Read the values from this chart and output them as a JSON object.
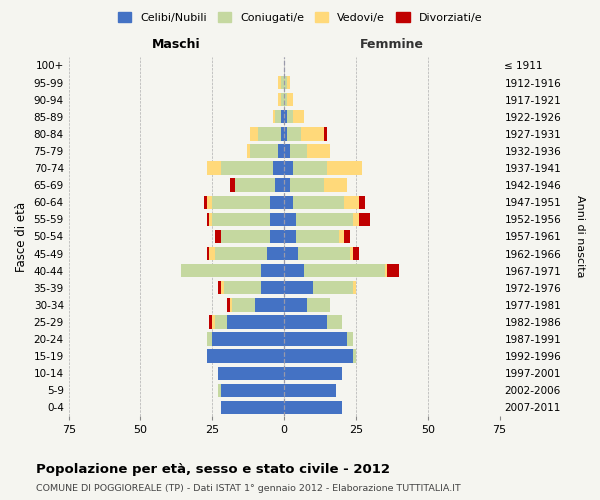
{
  "age_groups": [
    "0-4",
    "5-9",
    "10-14",
    "15-19",
    "20-24",
    "25-29",
    "30-34",
    "35-39",
    "40-44",
    "45-49",
    "50-54",
    "55-59",
    "60-64",
    "65-69",
    "70-74",
    "75-79",
    "80-84",
    "85-89",
    "90-94",
    "95-99",
    "100+"
  ],
  "birth_years": [
    "2007-2011",
    "2002-2006",
    "1997-2001",
    "1992-1996",
    "1987-1991",
    "1982-1986",
    "1977-1981",
    "1972-1976",
    "1967-1971",
    "1962-1966",
    "1957-1961",
    "1952-1956",
    "1947-1951",
    "1942-1946",
    "1937-1941",
    "1932-1936",
    "1927-1931",
    "1922-1926",
    "1917-1921",
    "1912-1916",
    "≤ 1911"
  ],
  "maschi_celibi": [
    22,
    22,
    23,
    27,
    25,
    20,
    10,
    8,
    8,
    6,
    5,
    5,
    5,
    3,
    4,
    2,
    1,
    1,
    0,
    0,
    0
  ],
  "maschi_coniugati": [
    0,
    1,
    0,
    0,
    2,
    4,
    8,
    13,
    28,
    18,
    17,
    20,
    20,
    14,
    18,
    10,
    8,
    2,
    1,
    1,
    0
  ],
  "maschi_vedovi": [
    0,
    0,
    0,
    0,
    0,
    1,
    1,
    1,
    0,
    2,
    0,
    1,
    2,
    0,
    5,
    1,
    3,
    1,
    1,
    1,
    0
  ],
  "maschi_divorziati": [
    0,
    0,
    0,
    0,
    0,
    1,
    1,
    1,
    0,
    1,
    2,
    1,
    1,
    2,
    0,
    0,
    0,
    0,
    0,
    0,
    0
  ],
  "femmine_nubili": [
    20,
    18,
    20,
    24,
    22,
    15,
    8,
    10,
    7,
    5,
    4,
    4,
    3,
    2,
    3,
    2,
    1,
    1,
    0,
    0,
    0
  ],
  "femmine_coniugate": [
    0,
    0,
    0,
    1,
    2,
    5,
    8,
    14,
    28,
    18,
    15,
    20,
    18,
    12,
    12,
    6,
    5,
    2,
    1,
    1,
    0
  ],
  "femmine_vedove": [
    0,
    0,
    0,
    0,
    0,
    0,
    0,
    1,
    1,
    1,
    2,
    2,
    5,
    8,
    12,
    8,
    8,
    4,
    2,
    1,
    0
  ],
  "femmine_divorziate": [
    0,
    0,
    0,
    0,
    0,
    0,
    0,
    0,
    4,
    2,
    2,
    4,
    2,
    0,
    0,
    0,
    1,
    0,
    0,
    0,
    0
  ],
  "colors": {
    "celibi": "#4472c4",
    "coniugati": "#c5d8a0",
    "vedovi": "#ffd97a",
    "divorziati": "#c00000"
  },
  "xlim": 75,
  "title": "Popolazione per età, sesso e stato civile - 2012",
  "subtitle": "COMUNE DI POGGIOREALE (TP) - Dati ISTAT 1° gennaio 2012 - Elaborazione TUTTITALIA.IT",
  "ylabel": "Fasce di età",
  "y2label": "Anni di nascita",
  "legend_labels": [
    "Celibi/Nubili",
    "Coniugati/e",
    "Vedovi/e",
    "Divorziati/e"
  ],
  "bg_color": "#f5f5f0"
}
